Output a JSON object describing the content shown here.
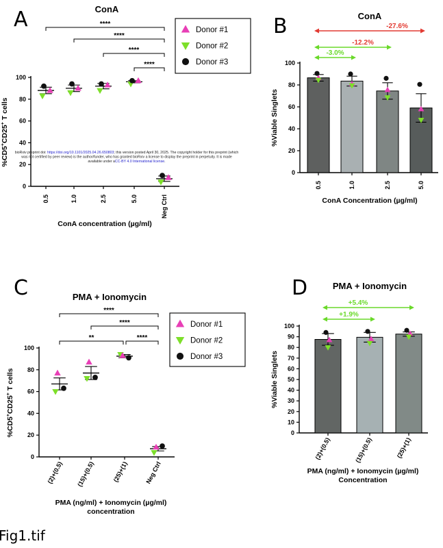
{
  "figure_caption": "Fig1.tif",
  "colors": {
    "donor1": "#e83fb6",
    "donor2": "#7ddf2a",
    "donor3": "#111111",
    "green_arrow": "#6ad92a",
    "red_arrow": "#e23a32",
    "bars_B": [
      "#5e605f",
      "#a9b0b2",
      "#7f8684",
      "#575c5b"
    ],
    "bars_D": [
      "#626664",
      "#a6b1b3",
      "#818a87"
    ]
  },
  "preprint_notice": {
    "line1_a": "bioRxiv preprint doi: ",
    "line1_link": "https://doi.org/10.1101/2025.04.26.650803",
    "line1_b": "; this version posted April 30, 2025. The copyright holder for this preprint (which",
    "line2": "was not certified by peer review) is the author/funder, who has granted bioRxiv a license to display the preprint in perpetuity. It is made",
    "line3_a": "available under a",
    "line3_link": "CC-BY 4.0 International license",
    "line3_b": "."
  },
  "chart_data": [
    {
      "panel": "A",
      "type": "scatter",
      "title": "ConA",
      "xlabel": "ConA concentration (µg/ml)",
      "ylabel_main": "%CD5",
      "ylabel_sup1": "+",
      "ylabel_mid": "CD25",
      "ylabel_sup2": "+",
      "ylabel_end": " T cells",
      "ylim": [
        0,
        100
      ],
      "yticks": [
        "0",
        "20",
        "40",
        "60",
        "80",
        "100"
      ],
      "categories": [
        "0.5",
        "1.0",
        "2.5",
        "5.0",
        "Neg Ctrl"
      ],
      "legend": [
        "Donor #1",
        "Donor #2",
        "Donor #3"
      ],
      "series": [
        {
          "name": "Donor #1",
          "marker": "triangle-up",
          "values": [
            88,
            90,
            93,
            97,
            8
          ]
        },
        {
          "name": "Donor #2",
          "marker": "triangle-down",
          "values": [
            83,
            86,
            88,
            94,
            4
          ]
        },
        {
          "name": "Donor #3",
          "marker": "circle",
          "values": [
            92,
            94,
            94,
            97,
            10
          ]
        }
      ],
      "mean": [
        88,
        90,
        92,
        96,
        7
      ],
      "err": [
        3,
        3,
        2.5,
        1,
        2.5
      ],
      "significance": [
        {
          "from": 0,
          "to": 4,
          "label": "****"
        },
        {
          "from": 1,
          "to": 4,
          "label": "****"
        },
        {
          "from": 2,
          "to": 4,
          "label": "****"
        },
        {
          "from": 3,
          "to": 4,
          "label": "****"
        }
      ]
    },
    {
      "panel": "B",
      "type": "bar",
      "title": "ConA",
      "xlabel": "ConA Concentration (µg/ml)",
      "ylabel": "%Viable Singlets",
      "ylim": [
        0,
        100
      ],
      "yticks": [
        "0",
        "20",
        "40",
        "60",
        "80",
        "100"
      ],
      "categories": [
        "0.5",
        "1.0",
        "2.5",
        "5.0"
      ],
      "values": [
        86.5,
        83.5,
        74.5,
        59
      ],
      "err": [
        3,
        4.5,
        7.5,
        13
      ],
      "points": [
        {
          "name": "Donor #1",
          "marker": "triangle-up",
          "values": [
            86.5,
            81,
            75.5,
            58
          ]
        },
        {
          "name": "Donor #2",
          "marker": "triangle-down",
          "values": [
            84.5,
            79.5,
            68.5,
            48
          ]
        },
        {
          "name": "Donor #3",
          "marker": "circle",
          "values": [
            90.5,
            90,
            86,
            80.5
          ]
        }
      ],
      "comparisons": [
        {
          "from": 0,
          "to": 1,
          "label": "-3.0%",
          "color": "green"
        },
        {
          "from": 0,
          "to": 2,
          "label": "-12.2%",
          "color": "green"
        },
        {
          "from": 0,
          "to": 3,
          "label": "-27.6%",
          "color": "red"
        }
      ]
    },
    {
      "panel": "C",
      "type": "scatter",
      "title": "PMA + Ionomycin",
      "xlabel_line1": "PMA (ng/ml) + Ionomycin (µg/ml)",
      "xlabel_line2": "concentration",
      "ylabel_main": "%CD5",
      "ylabel_sup1": "+",
      "ylabel_mid": "CD25",
      "ylabel_sup2": "+",
      "ylabel_end": " T cells",
      "ylim": [
        0,
        100
      ],
      "yticks": [
        "0",
        "20",
        "40",
        "60",
        "80",
        "100"
      ],
      "categories": [
        "(2)+(0.5)",
        "(15)+(0.5)",
        "(25)+(1)",
        "Neg Ctrl"
      ],
      "legend": [
        "Donor #1",
        "Donor #2",
        "Donor #3"
      ],
      "series": [
        {
          "name": "Donor #1",
          "marker": "triangle-up",
          "values": [
            77,
            87,
            93,
            9
          ]
        },
        {
          "name": "Donor #2",
          "marker": "triangle-down",
          "values": [
            60,
            72,
            94,
            4
          ]
        },
        {
          "name": "Donor #3",
          "marker": "circle",
          "values": [
            63,
            73,
            91,
            10
          ]
        }
      ],
      "mean": [
        67,
        77,
        92.5,
        7.5
      ],
      "err": [
        5.5,
        6,
        1.5,
        2
      ],
      "significance": [
        {
          "from": 0,
          "to": 3,
          "label": "****"
        },
        {
          "from": 1,
          "to": 3,
          "label": "****"
        },
        {
          "from": 0,
          "to": 2,
          "label": "**"
        },
        {
          "from": 2,
          "to": 3,
          "label": "****"
        }
      ]
    },
    {
      "panel": "D",
      "type": "bar",
      "title": "PMA + Ionomycin",
      "xlabel_line1": "PMA (ng/ml) + Ionomycin (µg/ml)",
      "xlabel_line2": "Concentration",
      "ylabel": "%Viable Singlets",
      "ylim": [
        0,
        100
      ],
      "yticks": [
        "0",
        "10",
        "20",
        "30",
        "40",
        "50",
        "60",
        "70",
        "80",
        "90",
        "100"
      ],
      "categories": [
        "(2)+(0.5)",
        "(15)+(0.5)",
        "(25)+(1)"
      ],
      "values": [
        87.5,
        89.5,
        92.5
      ],
      "err": [
        5.5,
        4.5,
        2
      ],
      "points": [
        {
          "name": "Donor #1",
          "marker": "triangle-up",
          "values": [
            87,
            88,
            93
          ]
        },
        {
          "name": "Donor #2",
          "marker": "triangle-down",
          "values": [
            80,
            84,
            90
          ]
        },
        {
          "name": "Donor #3",
          "marker": "circle",
          "values": [
            94,
            95,
            96
          ]
        }
      ],
      "comparisons": [
        {
          "from": 0,
          "to": 1,
          "label": "+1.9%",
          "color": "green"
        },
        {
          "from": 0,
          "to": 2,
          "label": "+5.4%",
          "color": "green"
        }
      ]
    }
  ]
}
